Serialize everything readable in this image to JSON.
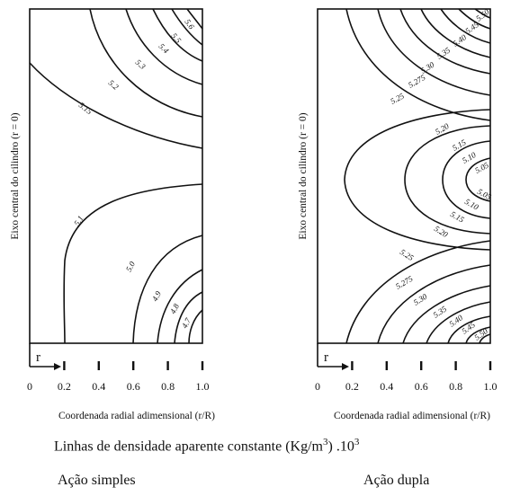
{
  "chart_data": [
    {
      "type": "contour",
      "panel_title": "Ação simples",
      "xlabel": "Coordenada radial adimensional (r/R)",
      "ylabel": "Eixo central do cilindro (r = 0)",
      "axis_marker": "r",
      "xticks": [
        "0",
        "0.2",
        "0.4",
        "0.6",
        "0.8",
        "1.0"
      ],
      "xlim": [
        0,
        1.0
      ],
      "contour_levels": [
        "5.6",
        "5.5",
        "5.4",
        "5.3",
        "5.2",
        "5.15",
        "5.1",
        "5.0",
        "4.9",
        "4.8",
        "4.7"
      ],
      "note": ""
    },
    {
      "type": "contour",
      "panel_title": "Ação dupla",
      "xlabel": "Coordenada radial adimensional (r/R)",
      "ylabel": "Eixo central do cilindro (r = 0)",
      "axis_marker": "r",
      "xticks": [
        "0",
        "0.2",
        "0.4",
        "0.6",
        "0.8",
        "1.0"
      ],
      "xlim": [
        0,
        1.0
      ],
      "contour_levels_top": [
        "5.50",
        "5.45",
        "5.40",
        "5.35",
        "5.30",
        "5.275",
        "5.25"
      ],
      "contour_levels_middle": [
        "5.20",
        "5.15",
        "5.10",
        "5.05",
        "5.05",
        "5.10",
        "5.15",
        "5.20"
      ],
      "contour_levels_bottom": [
        "5.25",
        "5.275",
        "5.30",
        "5.35",
        "5.40",
        "5.45",
        "5.50"
      ]
    }
  ],
  "figure_caption": "Linhas de densidade aparente constante (Kg/m",
  "caption_superscript": "3",
  "caption_suffix": ") .10",
  "caption_exponent": "3"
}
